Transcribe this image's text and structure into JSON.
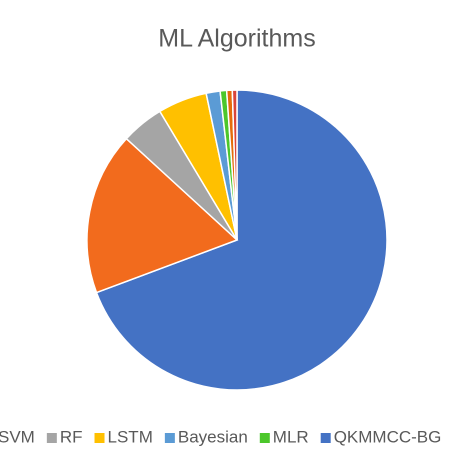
{
  "chart_data": {
    "type": "pie",
    "title": "ML Algorithms",
    "categories": [
      "QKMMCC-BG",
      "SVM",
      "RF",
      "LSTM",
      "Bayesian",
      "MLR",
      null,
      null
    ],
    "values": [
      69.3,
      17.5,
      4.6,
      5.3,
      1.5,
      0.7,
      0.6,
      0.5
    ],
    "colors": [
      "#4472c4",
      "#f26b1d",
      "#a5a5a5",
      "#ffc000",
      "#5b9bd5",
      "#4cc72b",
      "#e46c0a",
      "#d9453a"
    ],
    "legend": "bottom"
  }
}
